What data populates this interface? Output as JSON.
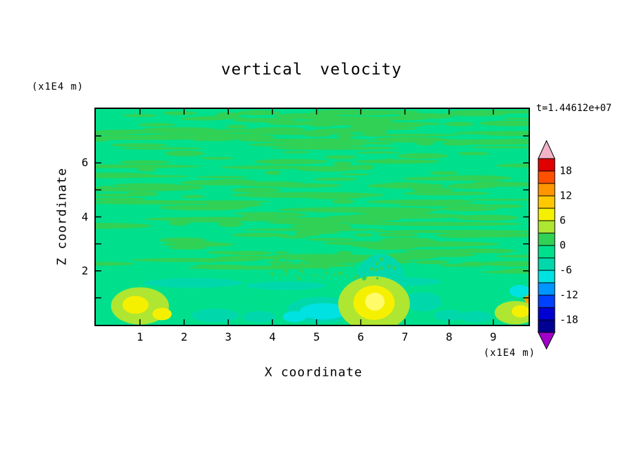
{
  "title": "vertical velocity",
  "timestamp": "t=1.44612e+07",
  "axes": {
    "x_label": "X coordinate",
    "x_unit": "(x1E4 m)",
    "y_label": "Z coordinate",
    "y_unit": "(x1E4 m)",
    "x_ticks": [
      "1",
      "2",
      "3",
      "4",
      "5",
      "6",
      "7",
      "8",
      "9"
    ],
    "y_ticks": [
      "2",
      "4",
      "6"
    ]
  },
  "colorbar": {
    "labels": [
      "18",
      "12",
      "6",
      "0",
      "-6",
      "-12",
      "-18"
    ],
    "segments": [
      "#E00000",
      "#FF5000",
      "#FF9600",
      "#FFC800",
      "#F5F000",
      "#AEE632",
      "#30D155",
      "#00E08C",
      "#00D8AC",
      "#00E1E1",
      "#0096FF",
      "#0041FF",
      "#0000D2",
      "#000091"
    ],
    "top_arrow_color": "#F2B3C9",
    "bottom_arrow_color": "#A000C8"
  },
  "palette": {
    "base": "#00E08C",
    "streak": "#30D155",
    "chartreuse": "#AEE632",
    "yellow": "#F5F000",
    "pale_yellow": "#FFFB69",
    "cyan": "#00E1E1",
    "teal": "#00D8AC",
    "amber": "#FFA000"
  },
  "pattern": {
    "seed": 20240601,
    "streak_count": 190,
    "top_dense_count": 42,
    "stipple_count": 46,
    "blobs": [
      {
        "x": 6.45,
        "z": 1.6,
        "rx": 36,
        "ry": 40,
        "color": "teal"
      },
      {
        "x": 2.2,
        "z": 1.55,
        "rx": 72,
        "ry": 7,
        "color": "teal"
      },
      {
        "x": 4.3,
        "z": 1.45,
        "rx": 58,
        "ry": 6,
        "color": "teal"
      },
      {
        "x": 7.0,
        "z": 1.6,
        "rx": 52,
        "ry": 6,
        "color": "teal"
      },
      {
        "x": 2.7,
        "z": 0.35,
        "rx": 34,
        "ry": 10,
        "color": "teal"
      },
      {
        "x": 3.7,
        "z": 0.3,
        "rx": 24,
        "ry": 8,
        "color": "teal"
      },
      {
        "x": 7.4,
        "z": 0.85,
        "rx": 28,
        "ry": 14,
        "color": "teal"
      },
      {
        "x": 8.0,
        "z": 0.35,
        "rx": 22,
        "ry": 8,
        "color": "teal"
      },
      {
        "x": 8.6,
        "z": 0.3,
        "rx": 24,
        "ry": 8,
        "color": "teal"
      },
      {
        "x": 5.1,
        "z": 0.55,
        "rx": 50,
        "ry": 19,
        "color": "teal"
      },
      {
        "x": 5.15,
        "z": 0.5,
        "rx": 34,
        "ry": 12,
        "color": "cyan"
      },
      {
        "x": 4.5,
        "z": 0.3,
        "rx": 17,
        "ry": 8,
        "color": "cyan"
      },
      {
        "x": 9.6,
        "z": 1.25,
        "rx": 15,
        "ry": 9,
        "color": "cyan"
      },
      {
        "x": 6.3,
        "z": 0.78,
        "rx": 52,
        "ry": 40,
        "color": "chartreuse"
      },
      {
        "x": 6.3,
        "z": 0.82,
        "rx": 30,
        "ry": 25,
        "color": "yellow"
      },
      {
        "x": 6.32,
        "z": 0.86,
        "rx": 14,
        "ry": 13,
        "color": "pale_yellow"
      },
      {
        "x": 1.0,
        "z": 0.7,
        "rx": 42,
        "ry": 27,
        "color": "chartreuse"
      },
      {
        "x": 0.9,
        "z": 0.74,
        "rx": 19,
        "ry": 13,
        "color": "yellow"
      },
      {
        "x": 1.5,
        "z": 0.4,
        "rx": 14,
        "ry": 9,
        "color": "yellow"
      },
      {
        "x": 9.5,
        "z": 0.45,
        "rx": 30,
        "ry": 17,
        "color": "chartreuse"
      },
      {
        "x": 9.62,
        "z": 0.5,
        "rx": 13,
        "ry": 9,
        "color": "yellow"
      },
      {
        "x": 9.8,
        "z": 0.95,
        "rx": 6,
        "ry": 6,
        "color": "amber"
      }
    ]
  },
  "chart_data": {
    "type": "heatmap",
    "title": "vertical velocity",
    "xlabel": "X coordinate",
    "ylabel": "Z coordinate",
    "x_unit": "(x1E4 m)",
    "y_unit": "(x1E4 m)",
    "xlim": [
      0,
      9.8
    ],
    "ylim": [
      0,
      8
    ],
    "x_ticks": [
      1,
      2,
      3,
      4,
      5,
      6,
      7,
      8,
      9
    ],
    "y_ticks": [
      2,
      4,
      6
    ],
    "timestamp": "t=1.44612e+07",
    "grid": false,
    "legend_position": "right-colorbar",
    "colorbar": {
      "tick_labels": [
        18,
        12,
        6,
        0,
        -6,
        -12,
        -18
      ],
      "contour_interval": 3,
      "range": [
        -21,
        21
      ]
    },
    "field_description": "Filled contour field of vertical velocity. Over most of the domain (z > 2) values oscillate between about -3 and +3, producing thin horizontal green wave streaks. Below z ~ 2 the field is smoother with localized extrema near the lower boundary.",
    "features": [
      {
        "x": 6.3,
        "z": 0.8,
        "type": "updraft maximum",
        "approx_value": 9
      },
      {
        "x": 1.0,
        "z": 0.7,
        "type": "updraft",
        "approx_value": 8
      },
      {
        "x": 1.5,
        "z": 0.4,
        "type": "updraft",
        "approx_value": 7
      },
      {
        "x": 5.1,
        "z": 0.5,
        "type": "downdraft",
        "approx_value": -8
      },
      {
        "x": 4.5,
        "z": 0.3,
        "type": "downdraft",
        "approx_value": -7
      },
      {
        "x": 9.5,
        "z": 0.5,
        "type": "updraft",
        "approx_value": 7
      },
      {
        "x": 9.8,
        "z": 0.95,
        "type": "updraft",
        "approx_value": 13
      }
    ]
  }
}
